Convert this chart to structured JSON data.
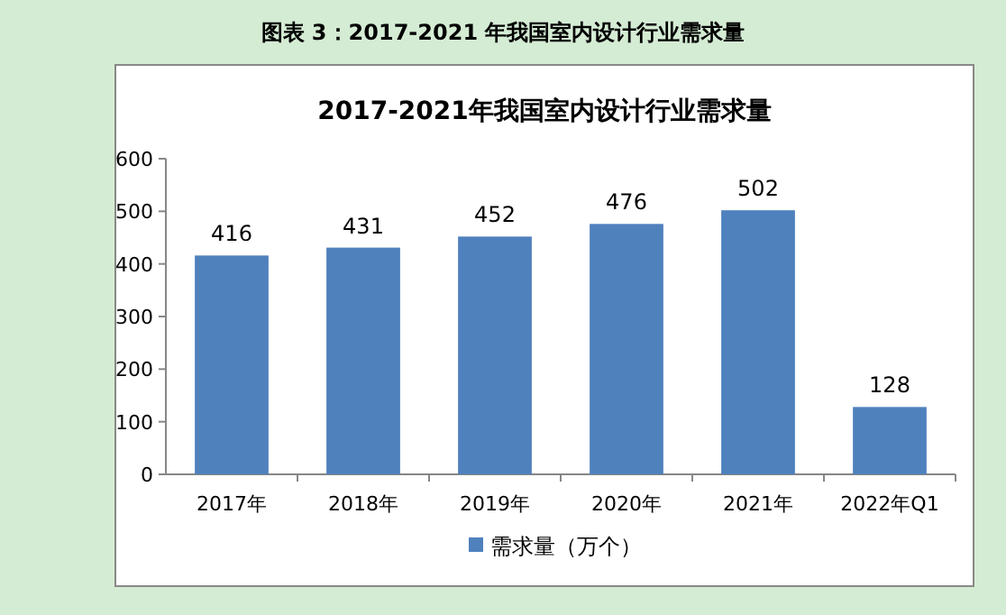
{
  "chart_data": {
    "type": "bar",
    "title": "2017-2021年我国室内设计行业需求量",
    "annotations": [
      "图表 3：2017-2021 年我国室内设计行业需求量"
    ],
    "categories": [
      "2017年",
      "2018年",
      "2019年",
      "2020年",
      "2021年",
      "2022年Q1"
    ],
    "series": [
      {
        "name": "需求量（万个）",
        "color": "#4f81bd",
        "values": [
          416,
          431,
          452,
          476,
          502,
          128
        ]
      }
    ],
    "ylim": [
      0,
      600
    ],
    "yticks": [
      0,
      100,
      200,
      300,
      400,
      500,
      600
    ],
    "data_labels": true,
    "grid": false,
    "legend": "bottom"
  }
}
